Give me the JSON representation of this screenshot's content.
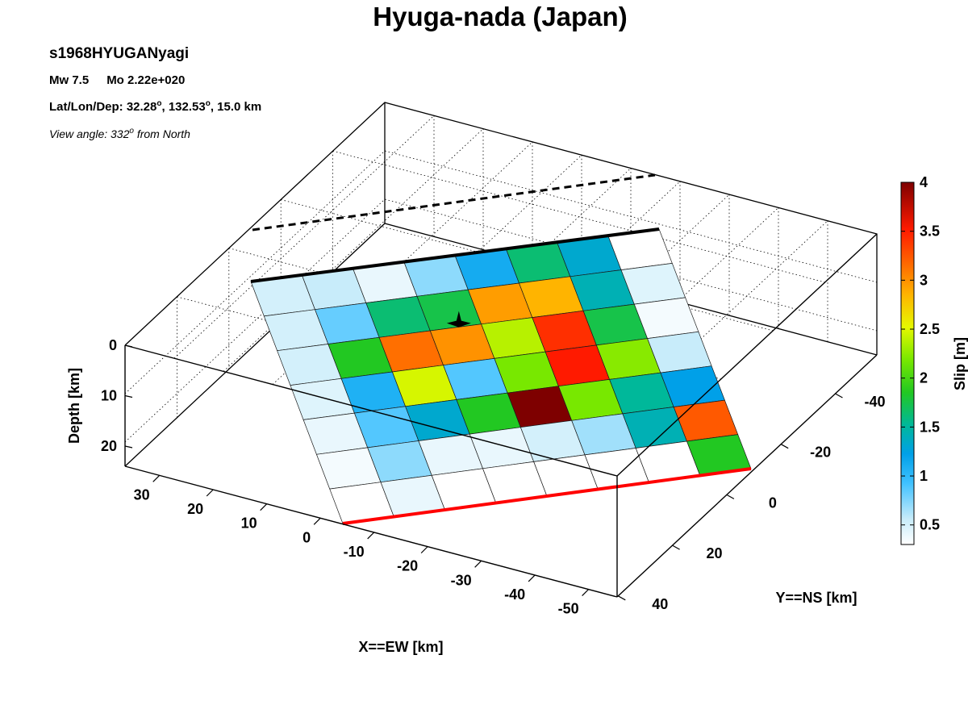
{
  "header": {
    "title": "Hyuga-nada (Japan)",
    "event_id": "s1968HYUGANyagi",
    "mw": "Mw 7.5",
    "mo": "Mo 2.22e+020",
    "location_label": "Lat/Lon/Dep: ",
    "lat": "32.28",
    "lon": "132.53",
    "depth": "15.0 km",
    "degree_mark": "o",
    "view_prefix": "View angle: ",
    "view_angle": "332",
    "view_suffix": " from North"
  },
  "chart_data": {
    "type": "heatmap",
    "title": "Hyuga-nada (Japan)",
    "xlabel": "X==EW [km]",
    "ylabel": "Y==NS [km]",
    "zlabel": "Depth [km]",
    "colorbar_label": "Slip [m]",
    "x_ticks": [
      30,
      20,
      10,
      0,
      -10,
      -20,
      -30,
      -40,
      -50
    ],
    "y_ticks": [
      -40,
      -20,
      0,
      20,
      40
    ],
    "z_ticks": [
      0,
      10,
      20
    ],
    "colorbar_ticks": [
      0.5,
      1,
      1.5,
      2,
      2.5,
      3,
      3.5,
      4
    ],
    "colorbar_range": [
      0.3,
      4.0
    ],
    "grid": true,
    "rows_top_to_bottom": 7,
    "cols_left_to_right": 8,
    "slip_m": [
      [
        0.5,
        0.55,
        0.4,
        0.7,
        1.1,
        1.6,
        1.3,
        0.3
      ],
      [
        0.5,
        0.8,
        1.6,
        1.7,
        2.9,
        2.8,
        1.4,
        0.45
      ],
      [
        0.5,
        1.8,
        3.1,
        2.95,
        2.3,
        3.4,
        1.7,
        0.35
      ],
      [
        0.45,
        1.05,
        2.4,
        0.85,
        2.1,
        3.5,
        2.15,
        0.55
      ],
      [
        0.4,
        0.85,
        1.3,
        1.8,
        4.0,
        2.1,
        1.5,
        1.2
      ],
      [
        0.35,
        0.7,
        0.4,
        0.4,
        0.5,
        0.65,
        1.4,
        3.2
      ],
      [
        0.25,
        0.4,
        0.3,
        0.2,
        0.2,
        0.25,
        0.2,
        1.8
      ]
    ],
    "hypocenter": {
      "row": 1.85,
      "col": 3.6
    }
  }
}
